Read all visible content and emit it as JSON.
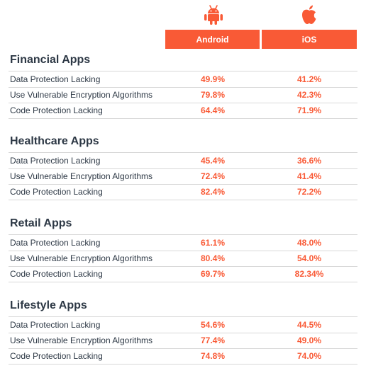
{
  "header": {
    "android_label": "Android",
    "ios_label": "iOS",
    "android_icon": "android-icon",
    "apple_icon": "apple-icon"
  },
  "colors": {
    "accent": "#f95a36",
    "text": "#2d3845",
    "rule": "#d8d8d8"
  },
  "chart_data": {
    "type": "table",
    "columns": [
      "Android",
      "iOS"
    ],
    "groups": [
      {
        "title": "Financial Apps",
        "rows": [
          {
            "label": "Data Protection Lacking",
            "android": "49.9%",
            "ios": "41.2%"
          },
          {
            "label": "Use Vulnerable Encryption Algorithms",
            "android": "79.8%",
            "ios": "42.3%"
          },
          {
            "label": "Code Protection Lacking",
            "android": "64.4%",
            "ios": "71.9%"
          }
        ]
      },
      {
        "title": "Healthcare Apps",
        "rows": [
          {
            "label": "Data Protection Lacking",
            "android": "45.4%",
            "ios": "36.6%"
          },
          {
            "label": "Use Vulnerable Encryption Algorithms",
            "android": "72.4%",
            "ios": "41.4%"
          },
          {
            "label": "Code Protection Lacking",
            "android": "82.4%",
            "ios": "72.2%"
          }
        ]
      },
      {
        "title": "Retail Apps",
        "rows": [
          {
            "label": "Data Protection Lacking",
            "android": "61.1%",
            "ios": "48.0%"
          },
          {
            "label": "Use Vulnerable Encryption Algorithms",
            "android": "80.4%",
            "ios": "54.0%"
          },
          {
            "label": "Code Protection Lacking",
            "android": "69.7%",
            "ios": "82.34%"
          }
        ]
      },
      {
        "title": "Lifestyle Apps",
        "rows": [
          {
            "label": "Data Protection Lacking",
            "android": "54.6%",
            "ios": "44.5%"
          },
          {
            "label": "Use Vulnerable Encryption Algorithms",
            "android": "77.4%",
            "ios": "49.0%"
          },
          {
            "label": "Code Protection Lacking",
            "android": "74.8%",
            "ios": "74.0%"
          }
        ]
      }
    ]
  }
}
